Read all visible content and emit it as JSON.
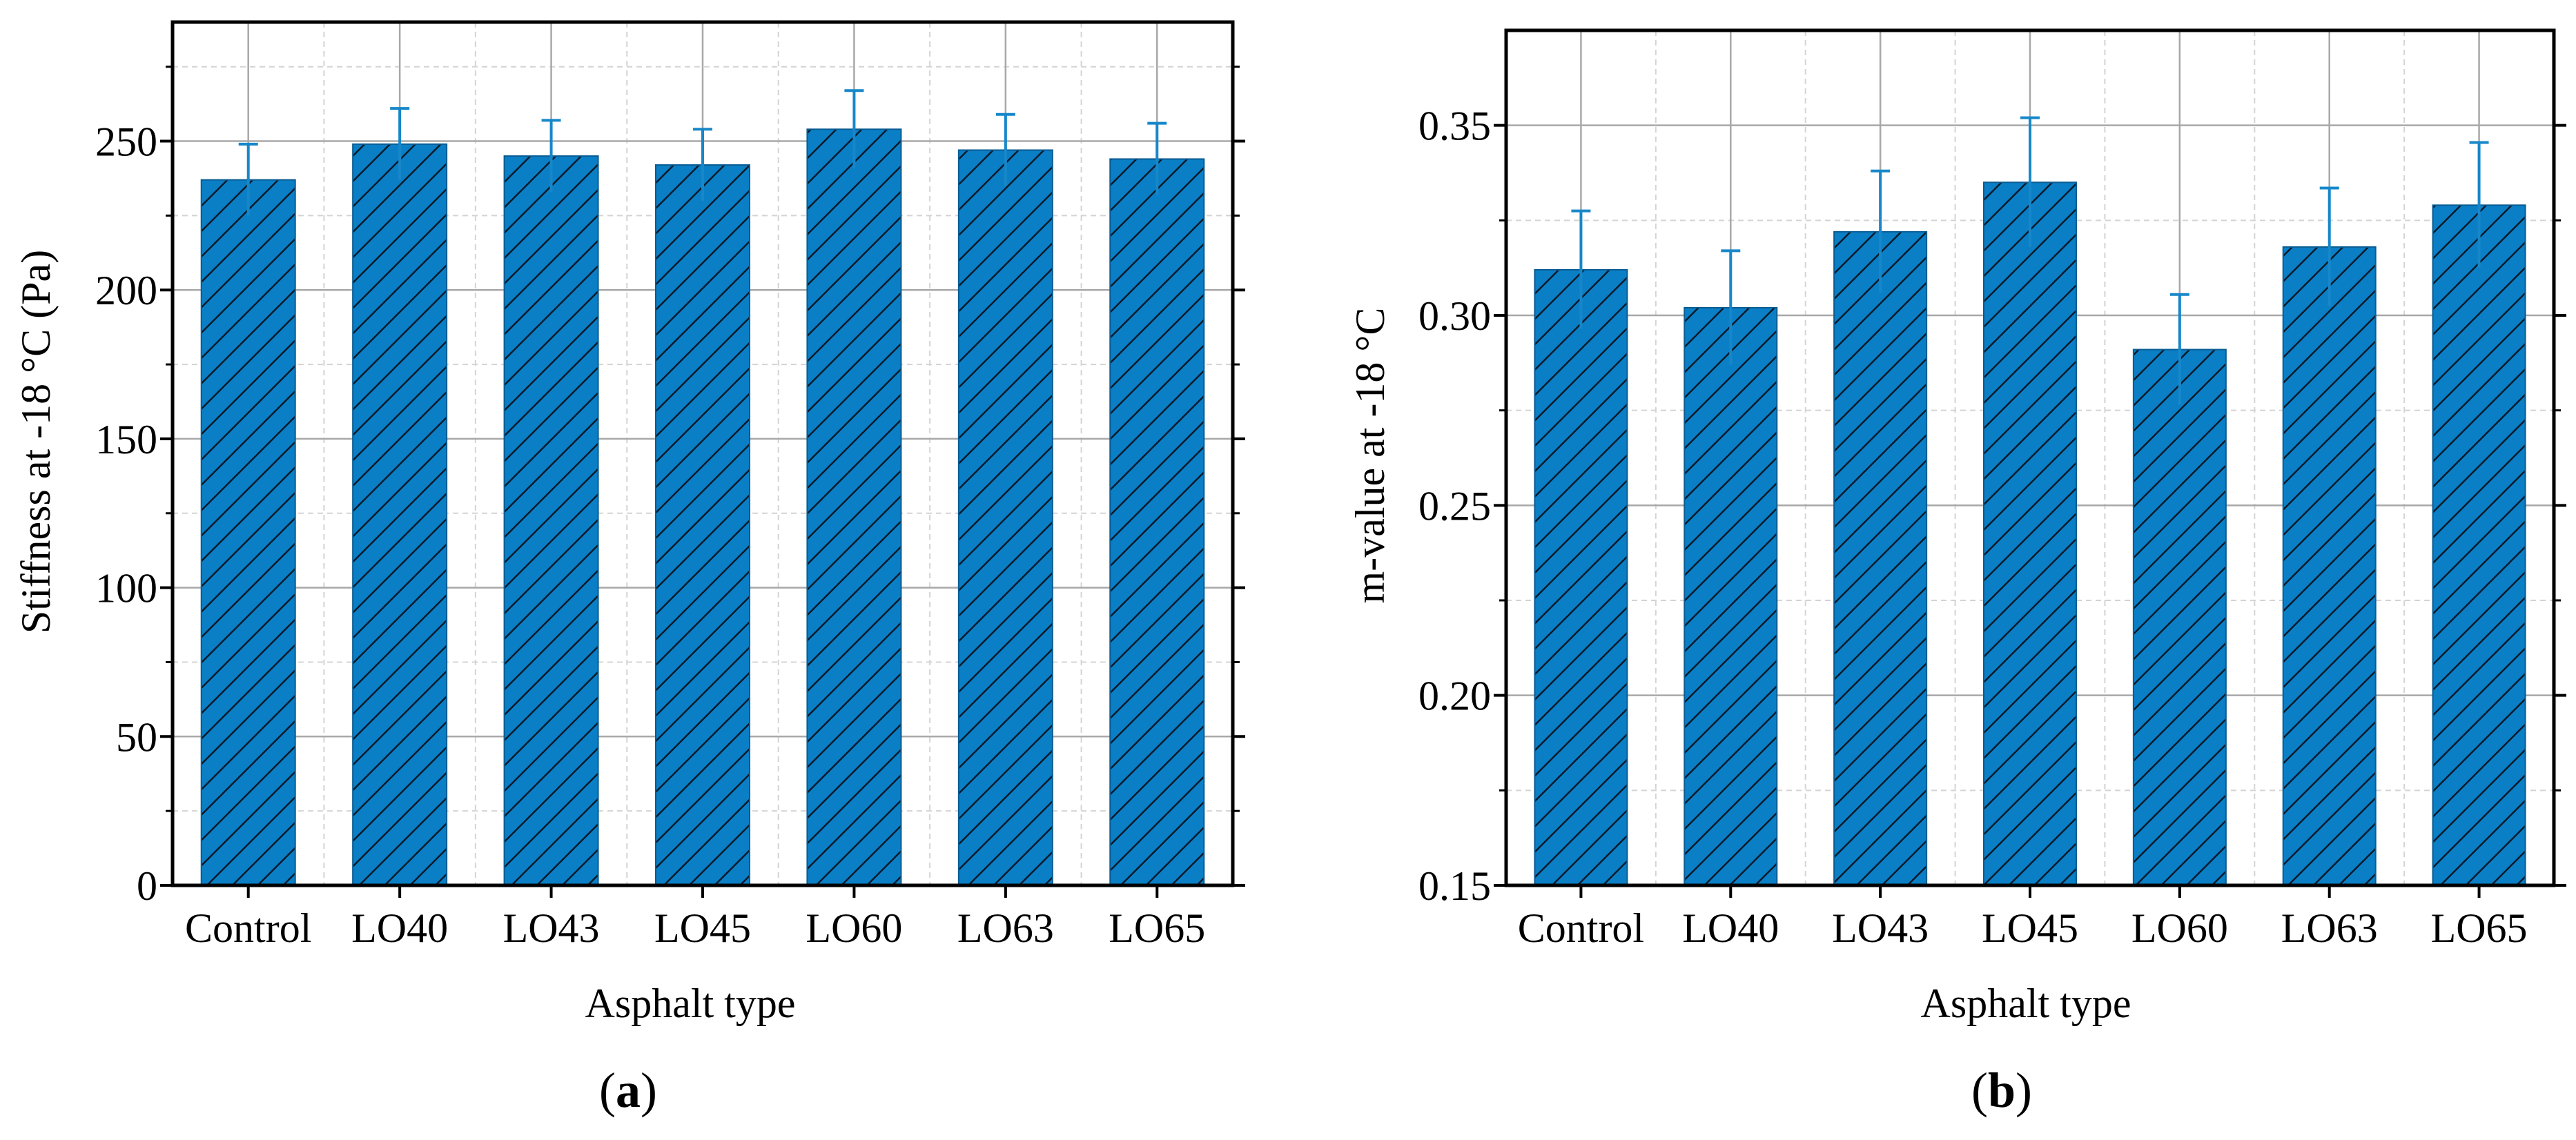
{
  "chart_data": [
    {
      "type": "bar",
      "panel_label": "a",
      "title": "",
      "xlabel": "Asphalt type",
      "ylabel": "Stiffness at -18 °C (Pa)",
      "categories": [
        "Control",
        "LO40",
        "LO43",
        "LO45",
        "LO60",
        "LO63",
        "LO65"
      ],
      "values": [
        237,
        249,
        245,
        242,
        254,
        247,
        244
      ],
      "error": [
        12,
        12,
        12,
        12,
        13,
        12,
        12
      ],
      "ylim": [
        0,
        290
      ],
      "yticks": [
        0,
        50,
        100,
        150,
        200,
        250
      ],
      "ytick_labels": [
        "0",
        "50",
        "100",
        "150",
        "200",
        "250"
      ],
      "grid": true,
      "bar_color": "#0a7fc6",
      "hatch": "diagonal",
      "error_color": "#1787c9"
    },
    {
      "type": "bar",
      "panel_label": "b",
      "title": "",
      "xlabel": "Asphalt type",
      "ylabel": "m-value  at -18 °C",
      "categories": [
        "Control",
        "LO40",
        "LO43",
        "LO45",
        "LO60",
        "LO63",
        "LO65"
      ],
      "values": [
        0.312,
        0.302,
        0.322,
        0.335,
        0.291,
        0.318,
        0.329
      ],
      "error": [
        0.0155,
        0.015,
        0.016,
        0.017,
        0.0145,
        0.0155,
        0.0165
      ],
      "ylim": [
        0.15,
        0.375
      ],
      "yticks": [
        0.15,
        0.2,
        0.25,
        0.3,
        0.35
      ],
      "ytick_labels": [
        "0.15",
        "0.20",
        "0.25",
        "0.30",
        "0.35"
      ],
      "grid": true,
      "bar_color": "#0a7fc6",
      "hatch": "diagonal",
      "error_color": "#1787c9"
    }
  ]
}
